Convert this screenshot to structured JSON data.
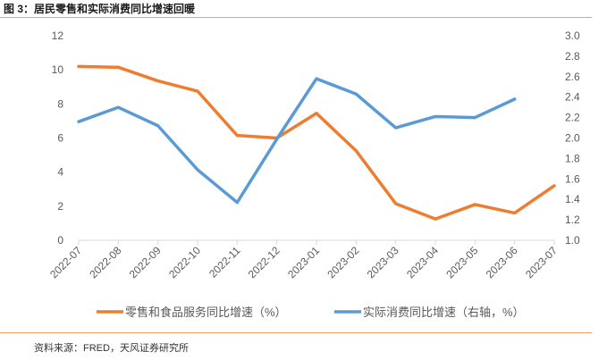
{
  "figure": {
    "title": "图 3：居民零售和实际消费同比增速回暖",
    "source": "资料来源：FRED，天风证券研究所"
  },
  "chart_data": {
    "type": "line",
    "categories": [
      "2022-07",
      "2022-08",
      "2022-09",
      "2022-10",
      "2022-11",
      "2022-12",
      "2023-01",
      "2023-02",
      "2023-03",
      "2023-04",
      "2023-05",
      "2023-06",
      "2023-07"
    ],
    "series": [
      {
        "name": "零售和食品服务同比增速（%）",
        "axis": "left",
        "color": "#ed7d31",
        "values": [
          10.2,
          10.15,
          9.35,
          8.75,
          6.15,
          6.0,
          7.45,
          5.25,
          2.15,
          1.25,
          2.1,
          1.6,
          3.2
        ]
      },
      {
        "name": "实际消费同比增速（右轴，%）",
        "axis": "right",
        "color": "#5b9bd5",
        "values": [
          2.16,
          2.3,
          2.12,
          1.69,
          1.37,
          1.99,
          2.58,
          2.43,
          2.1,
          2.21,
          2.2,
          2.38,
          null
        ]
      }
    ],
    "y_left": {
      "min": 0,
      "max": 12,
      "ticks": [
        "0",
        "2",
        "4",
        "6",
        "8",
        "10",
        "12"
      ]
    },
    "y_right": {
      "min": 1.0,
      "max": 3.0,
      "ticks": [
        "1.0",
        "1.2",
        "1.4",
        "1.6",
        "1.8",
        "2.0",
        "2.2",
        "2.4",
        "2.6",
        "2.8",
        "3.0"
      ]
    },
    "legend_position": "bottom"
  },
  "colors": {
    "accent_rule": "#f0a060",
    "axis": "#d9d9d9",
    "tick_text": "#595959"
  }
}
